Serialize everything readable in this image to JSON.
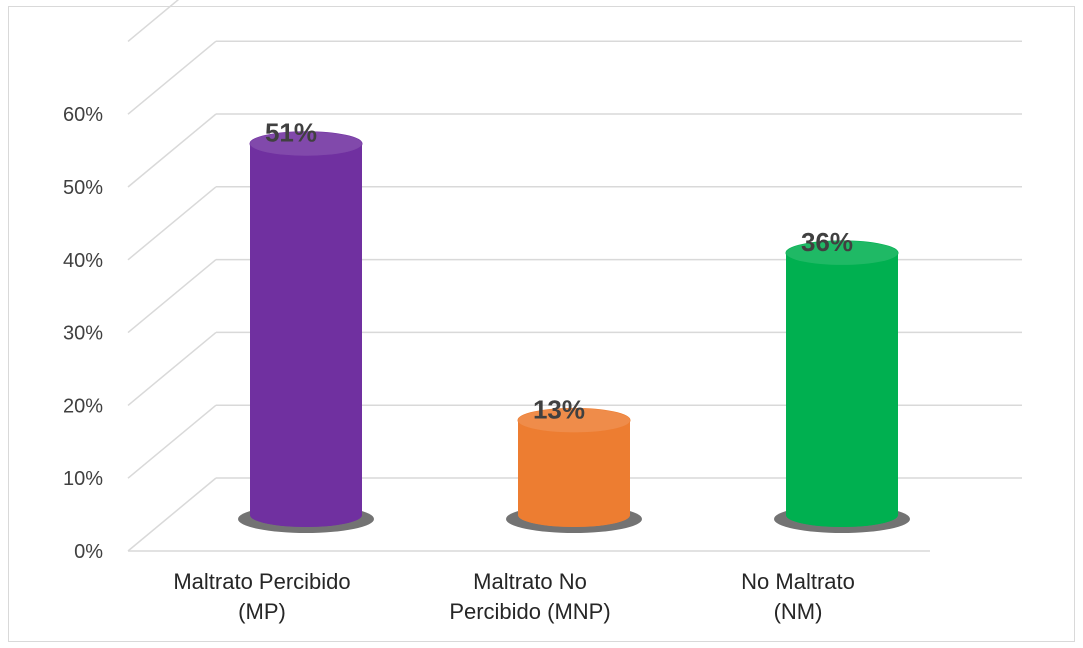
{
  "chart_data": {
    "type": "bar",
    "style": "3d-cylinder",
    "categories": [
      [
        "Maltrato Percibido",
        "(MP)"
      ],
      [
        "Maltrato No",
        "Percibido (MNP)"
      ],
      [
        "No Maltrato",
        "(NM)"
      ]
    ],
    "values": [
      51,
      13,
      36
    ],
    "data_labels": [
      "51%",
      "13%",
      "36%"
    ],
    "colors": [
      "#7030a0",
      "#ed7d31",
      "#00b050"
    ],
    "ylim": [
      0,
      60
    ],
    "yticks": [
      "0%",
      "10%",
      "20%",
      "30%",
      "40%",
      "50%",
      "60%"
    ],
    "grid": true,
    "legend": "none"
  }
}
